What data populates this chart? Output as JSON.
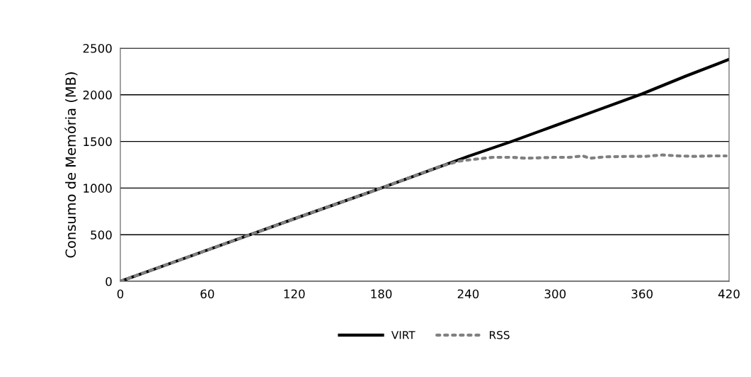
{
  "chart_data": {
    "type": "line",
    "ylabel": "Consumo de Memória (MB)",
    "xlim": [
      0,
      420
    ],
    "xticks": [
      0,
      60,
      120,
      180,
      240,
      300,
      360,
      420
    ],
    "ylim": [
      0,
      2500
    ],
    "yticks": [
      0,
      500,
      1000,
      1500,
      2000,
      2500
    ],
    "grid": "y",
    "legend": "bottom",
    "series": [
      {
        "name": "VIRT",
        "color": "#000000",
        "line_style": "solid",
        "x": [
          0,
          60,
          120,
          180,
          240,
          270,
          300,
          330,
          360,
          390,
          420
        ],
        "values": [
          0,
          335,
          670,
          1000,
          1340,
          1500,
          1670,
          1840,
          2010,
          2200,
          2380
        ]
      },
      {
        "name": "RSS",
        "color": "#808080",
        "line_style": "dotted",
        "x": [
          0,
          60,
          120,
          180,
          220,
          234,
          245,
          257,
          270,
          280,
          290,
          300,
          310,
          319,
          324,
          335,
          350,
          362,
          374,
          385,
          396,
          408,
          418
        ],
        "values": [
          0,
          335,
          670,
          1000,
          1230,
          1290,
          1310,
          1330,
          1330,
          1320,
          1325,
          1330,
          1330,
          1345,
          1320,
          1335,
          1340,
          1340,
          1355,
          1345,
          1340,
          1345,
          1345
        ]
      }
    ]
  }
}
